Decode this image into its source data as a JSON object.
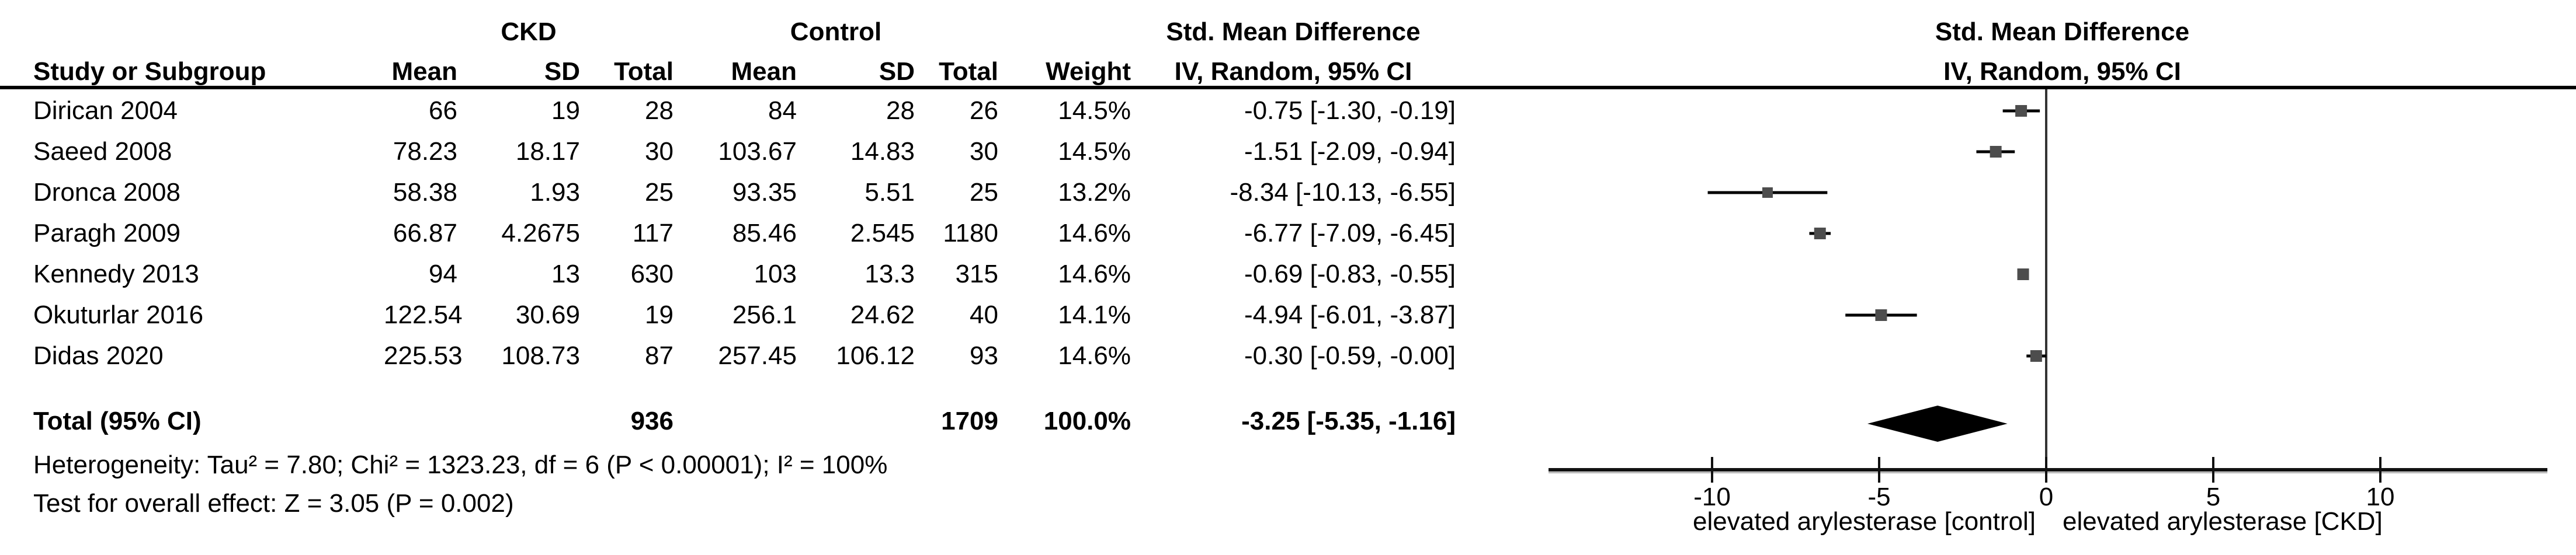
{
  "table": {
    "group_headers": {
      "ckd": "CKD",
      "control": "Control",
      "smd": "Std. Mean Difference"
    },
    "col_headers": {
      "study": "Study or Subgroup",
      "mean": "Mean",
      "sd": "SD",
      "total": "Total",
      "mean2": "Mean",
      "sd2": "SD",
      "total2": "Total",
      "weight": "Weight",
      "ci": "IV, Random, 95% CI"
    },
    "rows": [
      {
        "study": "Dirican 2004",
        "ckd_mean": "66",
        "ckd_sd": "19",
        "ckd_total": "28",
        "control_mean": "84",
        "control_sd": "28",
        "control_total": "26",
        "weight": "14.5%",
        "ci": "-0.75 [-1.30, -0.19]"
      },
      {
        "study": "Saeed 2008",
        "ckd_mean": "78.23",
        "ckd_sd": "18.17",
        "ckd_total": "30",
        "control_mean": "103.67",
        "control_sd": "14.83",
        "control_total": "30",
        "weight": "14.5%",
        "ci": "-1.51 [-2.09, -0.94]"
      },
      {
        "study": "Dronca 2008",
        "ckd_mean": "58.38",
        "ckd_sd": "1.93",
        "ckd_total": "25",
        "control_mean": "93.35",
        "control_sd": "5.51",
        "control_total": "25",
        "weight": "13.2%",
        "ci": "-8.34 [-10.13, -6.55]"
      },
      {
        "study": "Paragh 2009",
        "ckd_mean": "66.87",
        "ckd_sd": "4.2675",
        "ckd_total": "117",
        "control_mean": "85.46",
        "control_sd": "2.545",
        "control_total": "1180",
        "weight": "14.6%",
        "ci": "-6.77 [-7.09, -6.45]"
      },
      {
        "study": "Kennedy 2013",
        "ckd_mean": "94",
        "ckd_sd": "13",
        "ckd_total": "630",
        "control_mean": "103",
        "control_sd": "13.3",
        "control_total": "315",
        "weight": "14.6%",
        "ci": "-0.69 [-0.83, -0.55]"
      },
      {
        "study": "Okuturlar 2016",
        "ckd_mean": "122.54",
        "ckd_sd": "30.69",
        "ckd_total": "19",
        "control_mean": "256.1",
        "control_sd": "24.62",
        "control_total": "40",
        "weight": "14.1%",
        "ci": "-4.94 [-6.01, -3.87]"
      },
      {
        "study": "Didas 2020",
        "ckd_mean": "225.53",
        "ckd_sd": "108.73",
        "ckd_total": "87",
        "control_mean": "257.45",
        "control_sd": "106.12",
        "control_total": "93",
        "weight": "14.6%",
        "ci": "-0.30 [-0.59, -0.00]"
      }
    ],
    "total_row": {
      "label": "Total (95% CI)",
      "ckd_total": "936",
      "control_total": "1709",
      "weight": "100.0%",
      "ci": "-3.25 [-5.35, -1.16]"
    },
    "footer": {
      "heterogeneity": "Heterogeneity: Tau² = 7.80; Chi² = 1323.23, df = 6 (P < 0.00001); I² = 100%",
      "overall_effect": "Test for overall effect: Z = 3.05 (P = 0.002)"
    }
  },
  "plot": {
    "header_line1": "Std. Mean Difference",
    "header_line2": "IV, Random, 95% CI"
  },
  "chart_data": {
    "type": "forest",
    "effect_measure": "Std. Mean Difference (IV, Random, 95% CI)",
    "groups": [
      "CKD",
      "Control"
    ],
    "studies": [
      {
        "name": "Dirican 2004",
        "ckd": {
          "mean": 66,
          "sd": 19,
          "n": 28
        },
        "control": {
          "mean": 84,
          "sd": 28,
          "n": 26
        },
        "weight_pct": 14.5,
        "smd": -0.75,
        "ci": [
          -1.3,
          -0.19
        ]
      },
      {
        "name": "Saeed 2008",
        "ckd": {
          "mean": 78.23,
          "sd": 18.17,
          "n": 30
        },
        "control": {
          "mean": 103.67,
          "sd": 14.83,
          "n": 30
        },
        "weight_pct": 14.5,
        "smd": -1.51,
        "ci": [
          -2.09,
          -0.94
        ]
      },
      {
        "name": "Dronca 2008",
        "ckd": {
          "mean": 58.38,
          "sd": 1.93,
          "n": 25
        },
        "control": {
          "mean": 93.35,
          "sd": 5.51,
          "n": 25
        },
        "weight_pct": 13.2,
        "smd": -8.34,
        "ci": [
          -10.13,
          -6.55
        ]
      },
      {
        "name": "Paragh 2009",
        "ckd": {
          "mean": 66.87,
          "sd": 4.2675,
          "n": 117
        },
        "control": {
          "mean": 85.46,
          "sd": 2.545,
          "n": 1180
        },
        "weight_pct": 14.6,
        "smd": -6.77,
        "ci": [
          -7.09,
          -6.45
        ]
      },
      {
        "name": "Kennedy 2013",
        "ckd": {
          "mean": 94,
          "sd": 13,
          "n": 630
        },
        "control": {
          "mean": 103,
          "sd": 13.3,
          "n": 315
        },
        "weight_pct": 14.6,
        "smd": -0.69,
        "ci": [
          -0.83,
          -0.55
        ]
      },
      {
        "name": "Okuturlar 2016",
        "ckd": {
          "mean": 122.54,
          "sd": 30.69,
          "n": 19
        },
        "control": {
          "mean": 256.1,
          "sd": 24.62,
          "n": 40
        },
        "weight_pct": 14.1,
        "smd": -4.94,
        "ci": [
          -6.01,
          -3.87
        ]
      },
      {
        "name": "Didas 2020",
        "ckd": {
          "mean": 225.53,
          "sd": 108.73,
          "n": 87
        },
        "control": {
          "mean": 257.45,
          "sd": 106.12,
          "n": 93
        },
        "weight_pct": 14.6,
        "smd": -0.3,
        "ci": [
          -0.59,
          0.0
        ]
      }
    ],
    "total": {
      "label": "Total (95% CI)",
      "ckd_n": 936,
      "control_n": 1709,
      "weight_pct": 100.0,
      "smd": -3.25,
      "ci": [
        -5.35,
        -1.16
      ]
    },
    "heterogeneity": {
      "tau2": 7.8,
      "chi2": 1323.23,
      "df": 6,
      "p": "< 0.00001",
      "i2_pct": 100
    },
    "overall_effect": {
      "z": 3.05,
      "p": "= 0.002"
    },
    "axis": {
      "ticks": [
        -10,
        -5,
        0,
        5,
        10
      ],
      "xlim": [
        -14.9,
        15.0
      ],
      "label_left": "elevated arylesterase [control]",
      "label_right": "elevated arylesterase [CKD]"
    },
    "legend_position": "none",
    "grid": false
  }
}
